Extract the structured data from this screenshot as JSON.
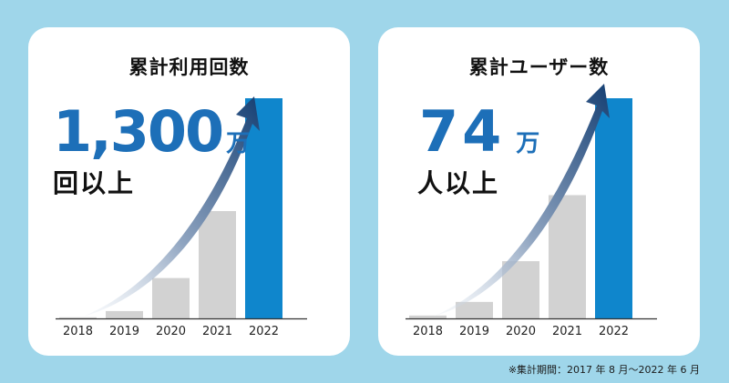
{
  "colors": {
    "background": "#9fd6ea",
    "bar_past": "#d2d2d2",
    "bar_current": "#0f86cc",
    "accent_text": "#1d6fb8",
    "arrow_start": "#dfe7f0",
    "arrow_end": "#153f73"
  },
  "cards": [
    {
      "title": "累計利用回数",
      "big_number": "1,300",
      "unit": "万",
      "suffix": "回以上"
    },
    {
      "title": "累計ユーザー数",
      "big_number": "74",
      "unit": "万",
      "suffix": "人以上"
    }
  ],
  "chart_data": [
    {
      "type": "bar",
      "title": "累計利用回数",
      "categories": [
        "2018",
        "2019",
        "2020",
        "2021",
        "2022"
      ],
      "values": [
        0.3,
        8,
        44,
        117,
        240
      ],
      "highlight_index": 4,
      "ylim": [
        0,
        240
      ],
      "grid": false,
      "annotation": "1,300万回以上"
    },
    {
      "type": "bar",
      "title": "累計ユーザー数",
      "categories": [
        "2018",
        "2019",
        "2020",
        "2021",
        "2022"
      ],
      "values": [
        1.3,
        7.5,
        26,
        56,
        100
      ],
      "highlight_index": 4,
      "ylim": [
        0,
        100
      ],
      "grid": false,
      "annotation": "74万人以上"
    }
  ],
  "footnote": "※集計期間：2017 年 8 月～2022 年 6 月"
}
